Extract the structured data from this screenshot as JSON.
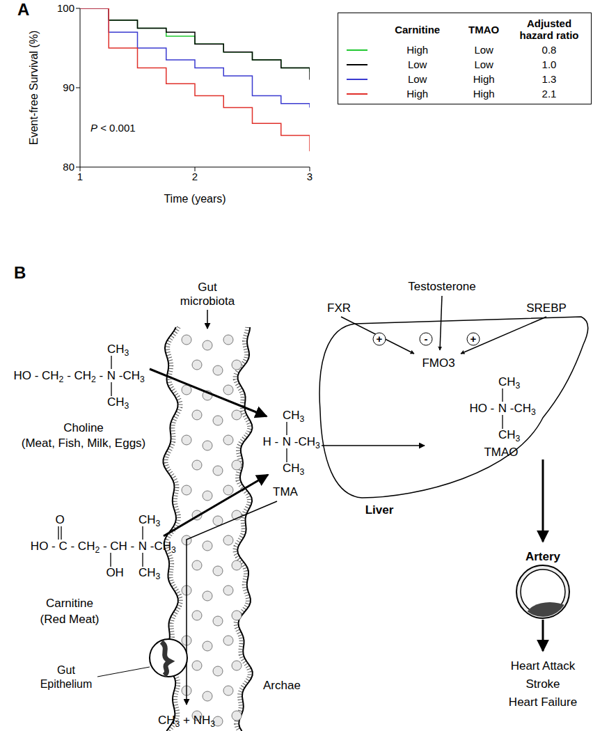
{
  "panel_labels": [
    "A",
    "B"
  ],
  "chart_data": {
    "type": "line",
    "line_style": "step",
    "xlabel": "Time (years)",
    "ylabel": "Event-free Survival (%)",
    "annotation": "P < 0.001",
    "x": [
      1,
      1.25,
      1.5,
      1.75,
      2,
      2.25,
      2.5,
      2.75,
      3
    ],
    "xlim": [
      1,
      3
    ],
    "xticks": [
      1,
      2,
      3
    ],
    "ylim": [
      80,
      100
    ],
    "yticks": [
      80,
      90,
      100
    ],
    "grid": false,
    "series": [
      {
        "color": "#22c832",
        "values": [
          100,
          98.5,
          97.5,
          96.5,
          95.5,
          94.5,
          93.5,
          92.5,
          92
        ]
      },
      {
        "color": "#000000",
        "values": [
          100,
          98.5,
          97.5,
          97,
          95.5,
          94.5,
          93.5,
          92.5,
          91
        ]
      },
      {
        "color": "#3a3ad0",
        "values": [
          100,
          97,
          95,
          93.5,
          92.5,
          91.5,
          89,
          88,
          87.5
        ]
      },
      {
        "color": "#e0302a",
        "values": [
          100,
          95,
          92.5,
          90.5,
          89,
          87.5,
          85.5,
          84,
          82
        ]
      }
    ]
  },
  "legend_table": {
    "header": [
      "Carnitine",
      "TMAO",
      "Adjusted hazard ratio"
    ],
    "rows": [
      [
        "High",
        "Low",
        "0.8"
      ],
      [
        "Low",
        "Low",
        "1.0"
      ],
      [
        "Low",
        "High",
        "1.3"
      ],
      [
        "High",
        "High",
        "2.1"
      ]
    ]
  },
  "diagram": {
    "choline": {
      "chain": "HO - CH2 - CH2 - N -CH3",
      "above": "CH3",
      "below": "CH3",
      "label": "Choline",
      "source": "(Meat, Fish, Milk, Eggs)"
    },
    "carnitine": {
      "chain": "HO - C - CH2 - CH - N -CH3",
      "above": [
        "O",
        "CH3"
      ],
      "below": [
        "OH",
        "CH3"
      ],
      "label": "Carnitine",
      "source": "(Red Meat)"
    },
    "tma": {
      "chain": "H - N -CH3",
      "above": "CH3",
      "below": "CH3",
      "label": "TMA"
    },
    "tmao": {
      "chain": "HO - N -CH3",
      "above": "CH3",
      "below": "CH3",
      "label": "TMAO"
    },
    "gut_microbiota": "Gut microbiota",
    "gut_epithelium": "Gut Epithelium",
    "archae": "Archae",
    "breakdown": "CH3 + NH3",
    "liver": "Liver",
    "enzyme": "FMO3",
    "regulators": [
      {
        "label": "FXR",
        "sign": "+"
      },
      {
        "label": "Testosterone",
        "sign": "-"
      },
      {
        "label": "SREBP",
        "sign": "+"
      }
    ],
    "artery": "Artery",
    "outcomes": [
      "Heart Attack",
      "Stroke",
      "Heart Failure"
    ]
  }
}
